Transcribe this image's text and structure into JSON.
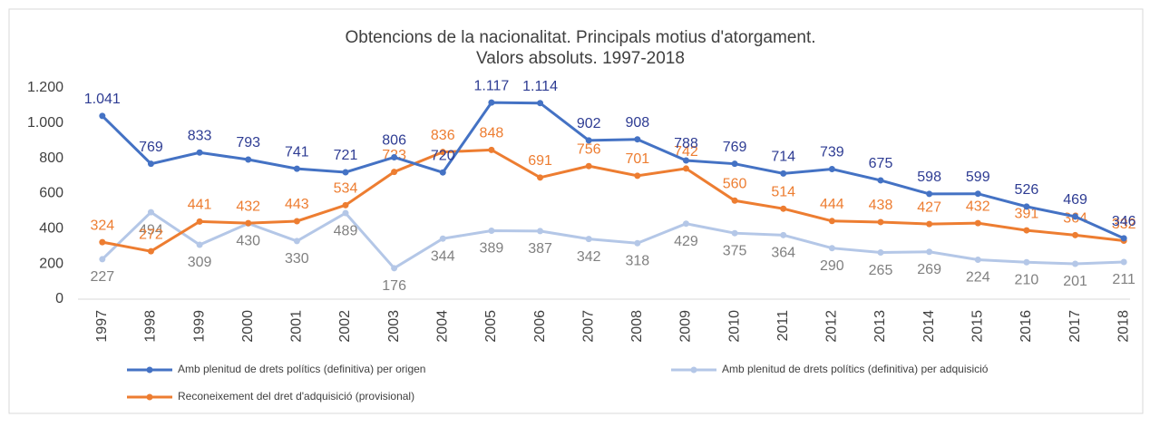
{
  "chart_data": {
    "type": "line",
    "title": "Obtencions de la nacionalitat.  Principals motius d'atorgament.",
    "subtitle": "Valors absoluts. 1997-2018",
    "categories": [
      "1997",
      "1998",
      "1999",
      "2000",
      "2001",
      "2002",
      "2003",
      "2004",
      "2005",
      "2006",
      "2007",
      "2008",
      "2009",
      "2010",
      "2011",
      "2012",
      "2013",
      "2014",
      "2015",
      "2016",
      "2017",
      "2018"
    ],
    "series": [
      {
        "name": "Amb plenitud de drets polítics (definitiva) per origen",
        "color": "#4472c4",
        "label_color": "#2e3c93",
        "values": [
          1041,
          769,
          833,
          793,
          741,
          721,
          806,
          720,
          1117,
          1114,
          902,
          908,
          788,
          769,
          714,
          739,
          675,
          598,
          599,
          526,
          469,
          346
        ],
        "value_labels": [
          "1.041",
          "769",
          "833",
          "793",
          "741",
          "721",
          "806",
          "720",
          "1.117",
          "1.114",
          "902",
          "908",
          "788",
          "769",
          "714",
          "739",
          "675",
          "598",
          "599",
          "526",
          "469",
          "346"
        ]
      },
      {
        "name": "Amb plenitud de drets polítics (definitiva) per adquisició",
        "color": "#b4c7e7",
        "label_color": "#808080",
        "values": [
          227,
          494,
          309,
          430,
          330,
          489,
          176,
          344,
          389,
          387,
          342,
          318,
          429,
          375,
          364,
          290,
          265,
          269,
          224,
          210,
          201,
          211
        ]
      },
      {
        "name": "Reconeixement del dret d'adquisició (provisional)",
        "color": "#ed7d31",
        "label_color": "#ed7d31",
        "values": [
          324,
          272,
          441,
          432,
          443,
          534,
          723,
          836,
          848,
          691,
          756,
          701,
          742,
          560,
          514,
          444,
          438,
          427,
          432,
          391,
          364,
          332
        ]
      }
    ],
    "ylim": [
      0,
      1200
    ],
    "yticks": [
      0,
      200,
      400,
      600,
      800,
      {
        "value": 1000,
        "label": "1.000"
      },
      {
        "value": 1200,
        "label": "1.200"
      }
    ],
    "grid": false
  }
}
